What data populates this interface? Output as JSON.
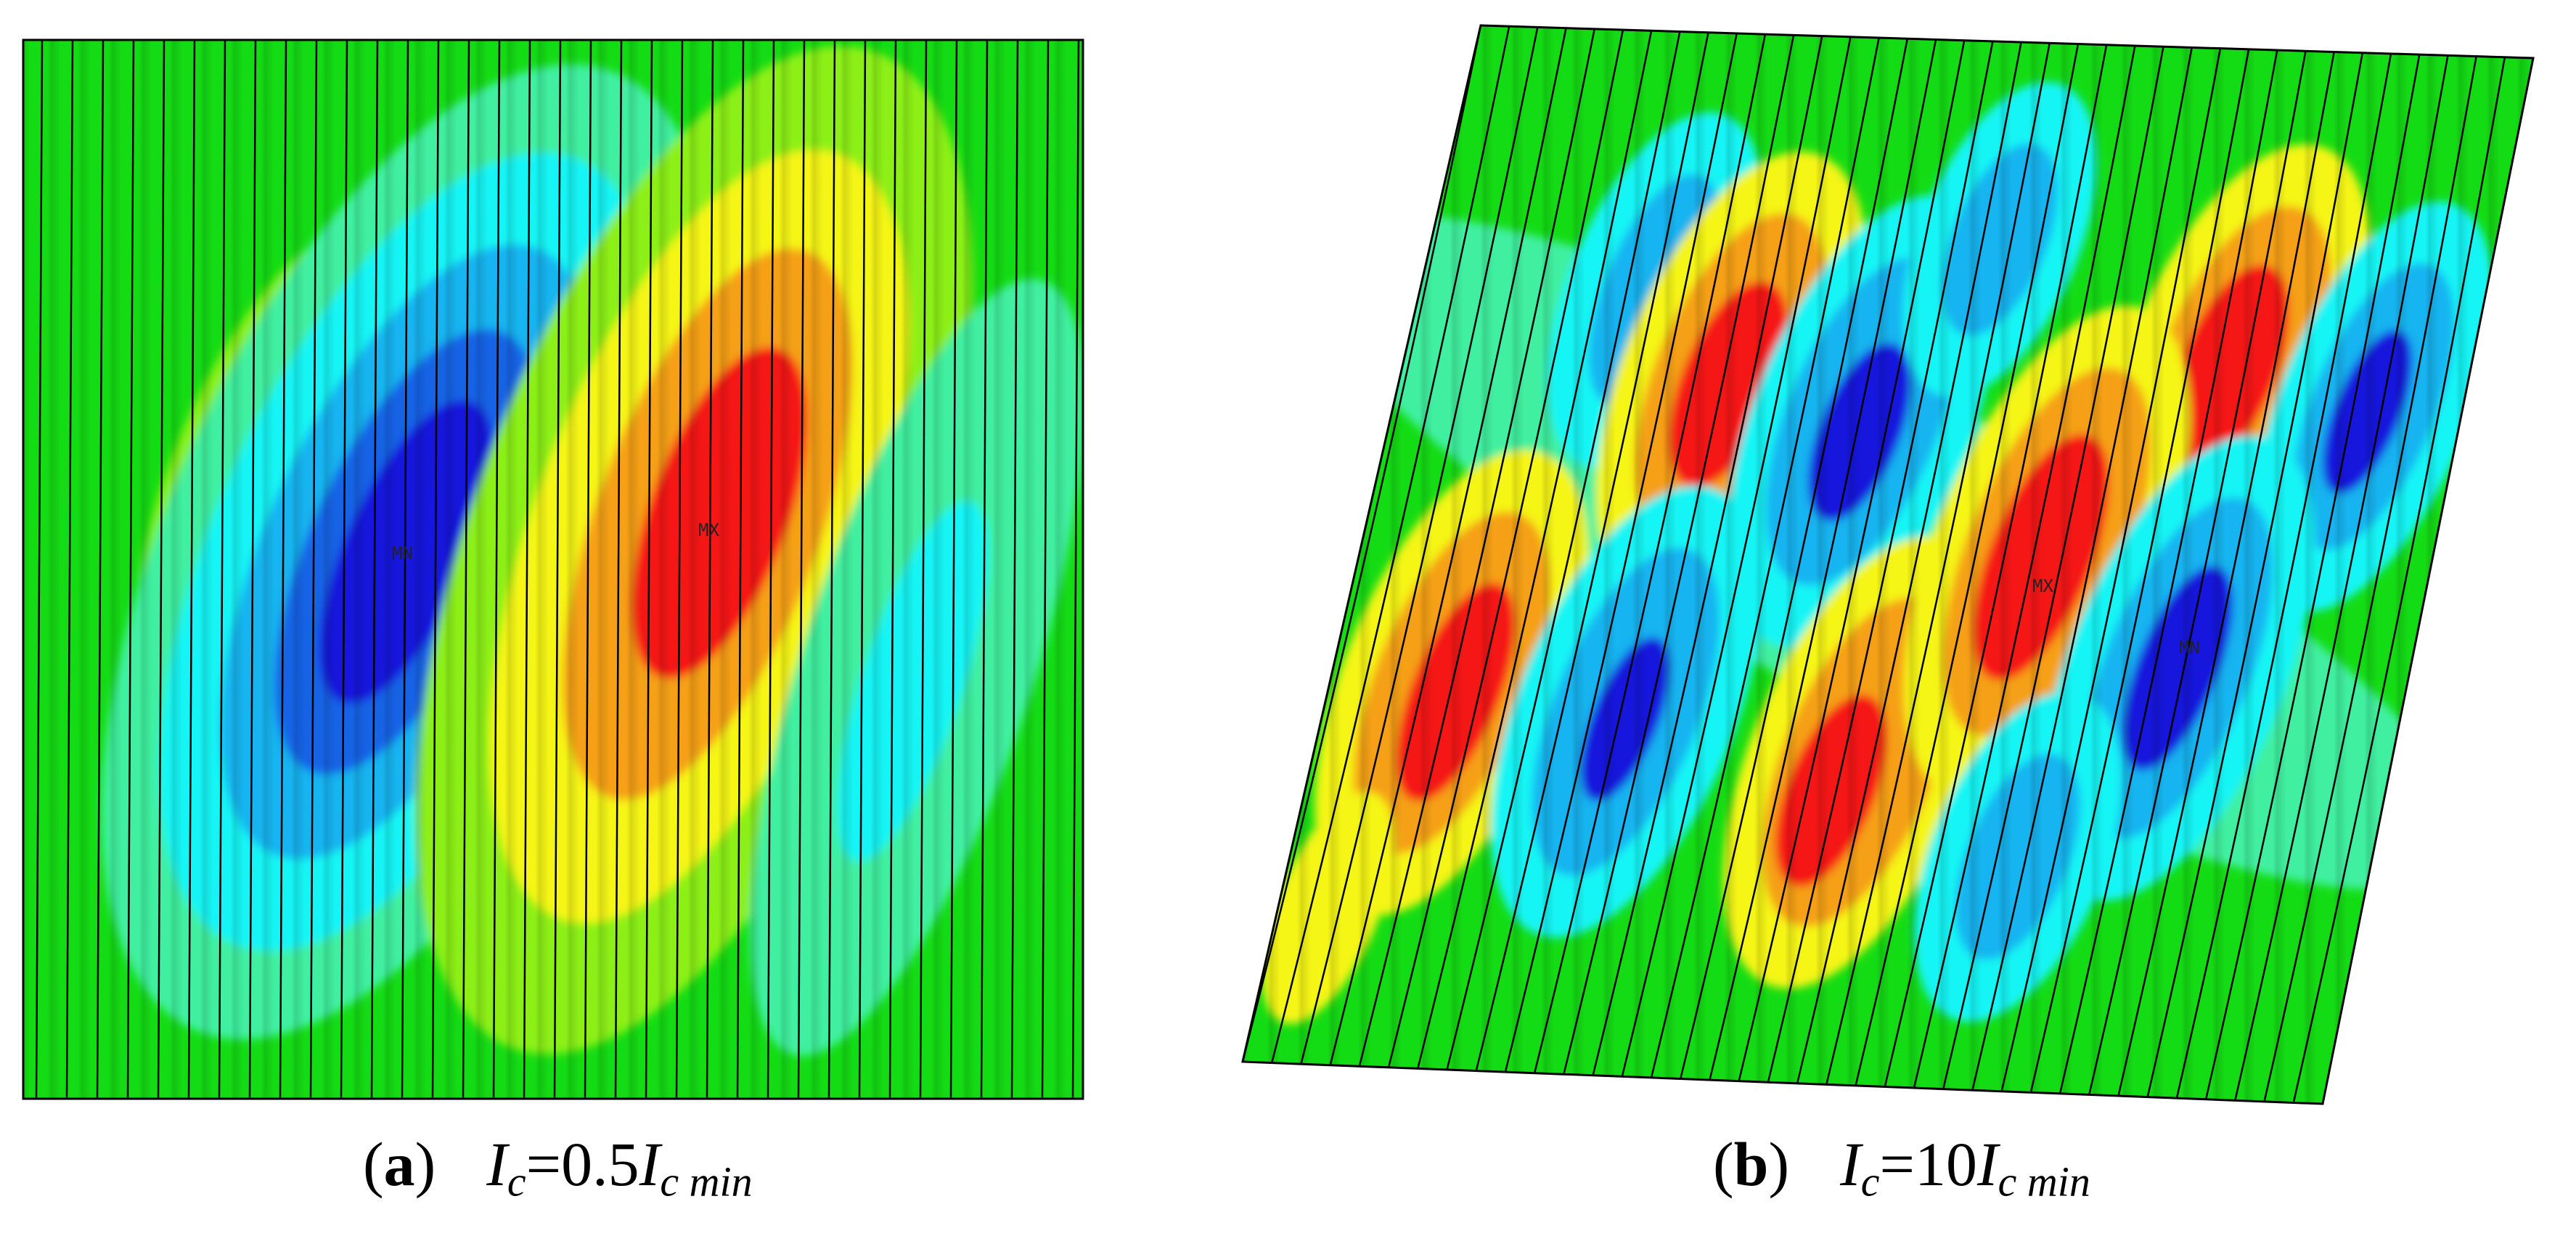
{
  "panels": [
    {
      "id": "a",
      "letter": "a",
      "symbol": "I",
      "subscript": "c",
      "value_text": "=0.5",
      "rhs_symbol": "I",
      "rhs_subscript": "c min",
      "min_marker": "MN",
      "max_marker": "MX"
    },
    {
      "id": "b",
      "letter": "b",
      "symbol": "I",
      "subscript": "c",
      "value_text": "=10",
      "rhs_symbol": "I",
      "rhs_subscript": "c min",
      "min_marker": "MN",
      "max_marker": "MX"
    }
  ],
  "colors": {
    "background_green": "#14dc14",
    "level_cyan_green": "#3ff0a0",
    "level_cyan": "#14f5f5",
    "level_sky": "#14b4f0",
    "level_mid_blue": "#1464e6",
    "level_min_blue": "#1414dc",
    "level_lime": "#8cf014",
    "level_yellow": "#f5f514",
    "level_orange": "#f5a014",
    "level_max_red": "#f51414",
    "edge": "#000000"
  }
}
